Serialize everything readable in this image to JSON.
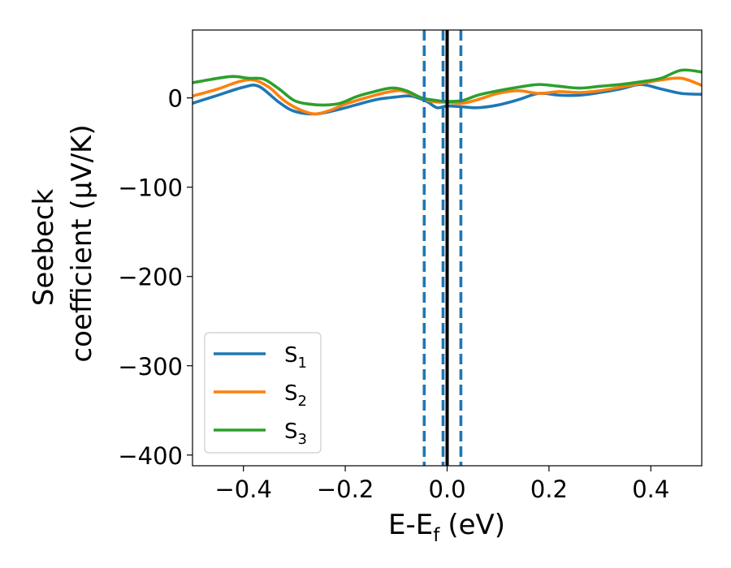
{
  "chart_data": {
    "type": "line",
    "xlabel": "E-E",
    "xlabel_sub": "f",
    "xlabel_unit": "(eV)",
    "ylabel_line1": "Seebeck",
    "ylabel_line2": "coefficient  (μV/K)",
    "xlim": [
      -0.5,
      0.5
    ],
    "ylim": [
      -412,
      76
    ],
    "xticks": [
      -0.4,
      -0.2,
      0.0,
      0.2,
      0.4
    ],
    "xtick_labels": [
      "−0.4",
      "−0.2",
      "0.0",
      "0.2",
      "0.4"
    ],
    "yticks": [
      0,
      -100,
      -200,
      -300,
      -400
    ],
    "ytick_labels": [
      "0",
      "−100",
      "−200",
      "−300",
      "−400"
    ],
    "grid": false,
    "legend_position": "lower-left",
    "series": [
      {
        "name": "S",
        "sub": "1",
        "color": "#1f77b4",
        "x": [
          -0.5,
          -0.45,
          -0.4,
          -0.37,
          -0.33,
          -0.3,
          -0.26,
          -0.22,
          -0.18,
          -0.14,
          -0.1,
          -0.07,
          -0.04,
          -0.02,
          0.0,
          0.03,
          0.06,
          0.1,
          0.14,
          0.18,
          0.22,
          0.26,
          0.3,
          0.34,
          0.38,
          0.42,
          0.46,
          0.5
        ],
        "y": [
          -6,
          3,
          12,
          13,
          -5,
          -15,
          -18,
          -14,
          -8,
          -2,
          1,
          2,
          -4,
          -11,
          -9,
          -10,
          -11,
          -8,
          -2,
          5,
          3,
          3,
          6,
          10,
          15,
          10,
          5,
          4
        ]
      },
      {
        "name": "S",
        "sub": "2",
        "color": "#ff7f0e",
        "x": [
          -0.5,
          -0.45,
          -0.41,
          -0.38,
          -0.35,
          -0.32,
          -0.29,
          -0.26,
          -0.23,
          -0.2,
          -0.16,
          -0.12,
          -0.09,
          -0.06,
          -0.03,
          0.0,
          0.03,
          0.06,
          0.1,
          0.14,
          0.18,
          0.22,
          0.26,
          0.3,
          0.34,
          0.38,
          0.42,
          0.46,
          0.5
        ],
        "y": [
          2,
          10,
          18,
          20,
          12,
          -3,
          -13,
          -18,
          -14,
          -7,
          0,
          6,
          8,
          2,
          -4,
          -5,
          -6,
          -2,
          5,
          8,
          5,
          7,
          6,
          8,
          12,
          16,
          20,
          22,
          14
        ]
      },
      {
        "name": "S",
        "sub": "3",
        "color": "#2ca02c",
        "x": [
          -0.5,
          -0.45,
          -0.42,
          -0.39,
          -0.36,
          -0.33,
          -0.3,
          -0.27,
          -0.24,
          -0.21,
          -0.18,
          -0.15,
          -0.11,
          -0.08,
          -0.05,
          -0.02,
          0.0,
          0.03,
          0.06,
          0.1,
          0.14,
          0.18,
          0.22,
          0.26,
          0.3,
          0.34,
          0.38,
          0.42,
          0.46,
          0.5
        ],
        "y": [
          17,
          22,
          24,
          22,
          21,
          10,
          -3,
          -7,
          -8,
          -6,
          1,
          6,
          11,
          8,
          0,
          -3,
          -4,
          -3,
          3,
          8,
          12,
          15,
          13,
          11,
          13,
          15,
          18,
          22,
          31,
          29
        ]
      }
    ],
    "vlines": [
      {
        "x": -0.045,
        "color": "#1f77b4",
        "style": "dashed"
      },
      {
        "x": -0.008,
        "color": "#1f77b4",
        "style": "dashed"
      },
      {
        "x": 0.027,
        "color": "#1f77b4",
        "style": "dashed"
      },
      {
        "x": 0.0,
        "color": "#000000",
        "style": "solid"
      }
    ]
  }
}
